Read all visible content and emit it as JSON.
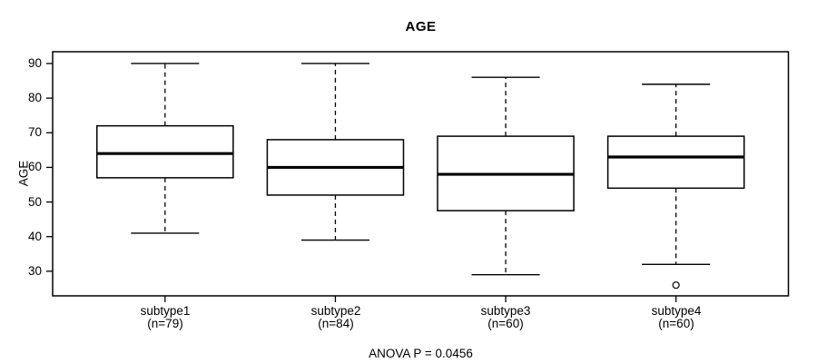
{
  "chart_data": {
    "type": "boxplot",
    "title": "AGE",
    "ylabel": "AGE",
    "xlabel": "",
    "annotation": "ANOVA P = 0.0456",
    "grid": false,
    "legend": null,
    "colors": {
      "stroke": "#000000",
      "background": "#ffffff",
      "box_fill": "#ffffff"
    },
    "y_axis": {
      "ticks": [
        30,
        40,
        50,
        60,
        70,
        80,
        90
      ],
      "ylim": [
        22.9,
        93.4
      ]
    },
    "x_axis": {
      "xlim": [
        0.34,
        4.66
      ],
      "positions": [
        1,
        2,
        3,
        4
      ]
    },
    "box_width": 0.8,
    "cap_width": 0.4,
    "groups": [
      {
        "label": "subtype1",
        "n_label": "(n=79)",
        "n": 79,
        "stats": {
          "whisker_low": 41,
          "q1": 57,
          "median": 64,
          "q3": 72,
          "whisker_high": 90
        },
        "outliers": []
      },
      {
        "label": "subtype2",
        "n_label": "(n=84)",
        "n": 84,
        "stats": {
          "whisker_low": 39,
          "q1": 52,
          "median": 60,
          "q3": 68,
          "whisker_high": 90
        },
        "outliers": []
      },
      {
        "label": "subtype3",
        "n_label": "(n=60)",
        "n": 60,
        "stats": {
          "whisker_low": 29,
          "q1": 47.5,
          "median": 58,
          "q3": 69,
          "whisker_high": 86
        },
        "outliers": []
      },
      {
        "label": "subtype4",
        "n_label": "(n=60)",
        "n": 60,
        "stats": {
          "whisker_low": 32,
          "q1": 54,
          "median": 63,
          "q3": 69,
          "whisker_high": 84
        },
        "outliers": [
          26
        ]
      }
    ]
  }
}
